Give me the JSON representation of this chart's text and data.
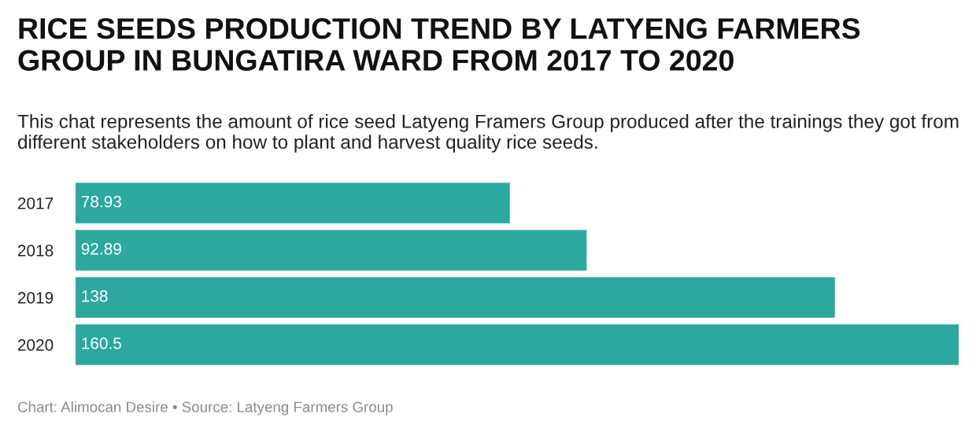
{
  "chart_data": {
    "type": "bar",
    "orientation": "horizontal",
    "title": "RICE SEEDS PRODUCTION TREND BY LATYENG FARMERS GROUP IN BUNGATIRA WARD FROM 2017 TO 2020",
    "subtitle": "This chat represents the amount of rice seed Latyeng Framers Group produced after the trainings they got from different stakeholders on how to plant and harvest quality rice seeds.",
    "categories": [
      "2017",
      "2018",
      "2019",
      "2020"
    ],
    "values": [
      78.93,
      92.89,
      138,
      160.5
    ],
    "value_labels": [
      "78.93",
      "92.89",
      "138",
      "160.5"
    ],
    "color": "#2ca89e",
    "xlim": [
      0,
      160.5
    ],
    "tick_labels": "y",
    "grid": false,
    "annotations": [
      "Chart: Alimocan Desire • Source: Latyeng Farmers Group"
    ]
  }
}
